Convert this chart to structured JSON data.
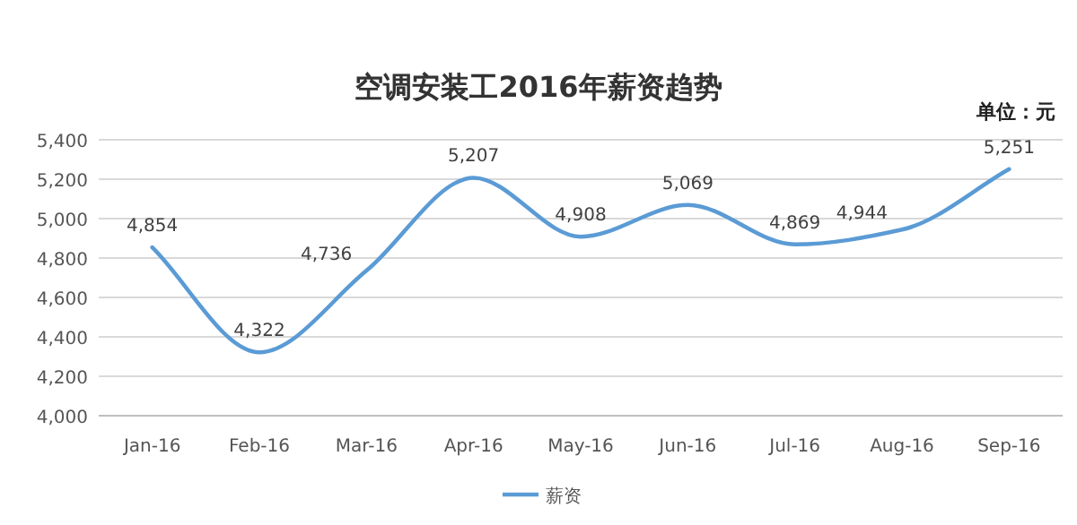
{
  "chart_data": {
    "type": "line",
    "title": "空调安装工2016年薪资趋势",
    "annotations": [
      "单位：元"
    ],
    "categories": [
      "Jan-16",
      "Feb-16",
      "Mar-16",
      "Apr-16",
      "May-16",
      "Jun-16",
      "Jul-16",
      "Aug-16",
      "Sep-16"
    ],
    "series": [
      {
        "name": "薪资",
        "color": "#5b9bd5",
        "values": [
          4854,
          4322,
          4736,
          5207,
          4908,
          5069,
          4869,
          4944,
          5251
        ],
        "value_labels": [
          "4,854",
          "4,322",
          "4,736",
          "5,207",
          "4,908",
          "5,069",
          "4,869",
          "4,944",
          "5,251"
        ]
      }
    ],
    "ylim": [
      4000,
      5400
    ],
    "yticks": [
      {
        "value": 4000,
        "label": "4,000"
      },
      {
        "value": 4200,
        "label": "4,200"
      },
      {
        "value": 4400,
        "label": "4,400"
      },
      {
        "value": 4600,
        "label": "4,600"
      },
      {
        "value": 4800,
        "label": "4,800"
      },
      {
        "value": 5000,
        "label": "5,000"
      },
      {
        "value": 5200,
        "label": "5,200"
      },
      {
        "value": 5400,
        "label": "5,400"
      }
    ],
    "grid": "y",
    "legend": "bottom"
  }
}
